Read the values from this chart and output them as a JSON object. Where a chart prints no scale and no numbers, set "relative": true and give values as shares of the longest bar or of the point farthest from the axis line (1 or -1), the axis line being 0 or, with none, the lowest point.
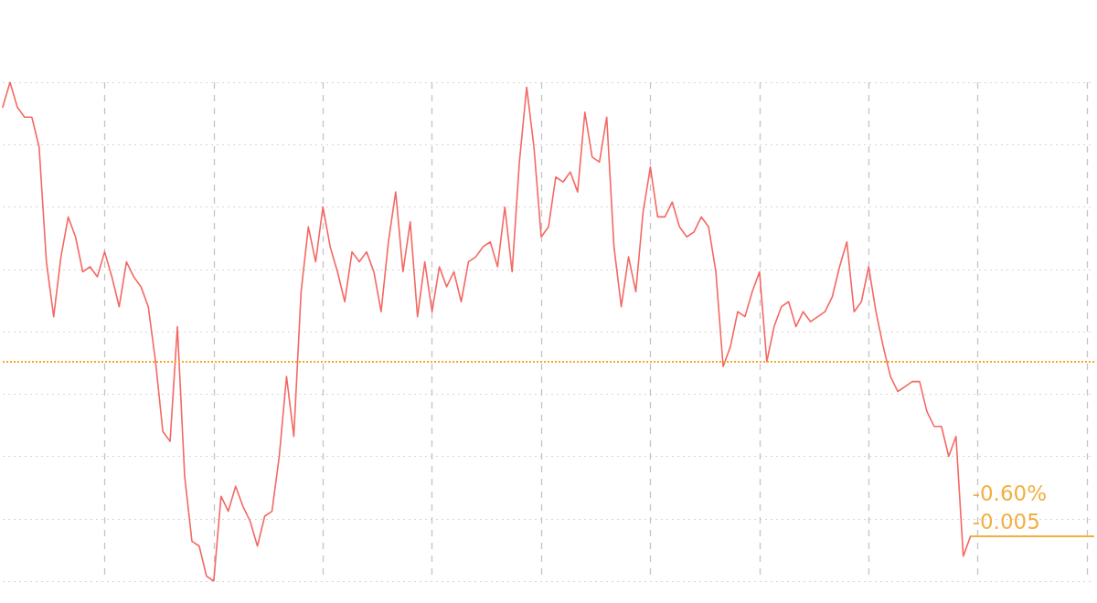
{
  "chart_data": {
    "type": "line",
    "relative": true,
    "grid": true,
    "categories": [
      null,
      null,
      null,
      null,
      null,
      null,
      null,
      null,
      null,
      null,
      null,
      null,
      null,
      null,
      null,
      null,
      null,
      null,
      null,
      null,
      null,
      null,
      null,
      null,
      null,
      null,
      null,
      null,
      null,
      null,
      null,
      null,
      null,
      null,
      null,
      null,
      null,
      null,
      null,
      null,
      null,
      null,
      null,
      null,
      null,
      null,
      null,
      null,
      null,
      null,
      null,
      null,
      null,
      null,
      null,
      null,
      null,
      null,
      null,
      null,
      null,
      null,
      null,
      null,
      null,
      null,
      null,
      null,
      null,
      null,
      null,
      null,
      null,
      null,
      null,
      null,
      null,
      null,
      null,
      null,
      null,
      null,
      null,
      null,
      null,
      null,
      null,
      null,
      null,
      null,
      null,
      null,
      null,
      null,
      null,
      null,
      null,
      null,
      null,
      null,
      null,
      null,
      null,
      null,
      null,
      null,
      null,
      null,
      null,
      null,
      null,
      null,
      null,
      null,
      null,
      null,
      null,
      null,
      null,
      null,
      null,
      null,
      null,
      null,
      null,
      null,
      null,
      null,
      null,
      null,
      null,
      null,
      null,
      null,
      null,
      null,
      null,
      null,
      null,
      null,
      null,
      null,
      null,
      null,
      null,
      null,
      null,
      null,
      null,
      null,
      null
    ],
    "series": [
      {
        "color": "#f46864",
        "values": [
          0.95,
          1.0,
          0.95,
          0.93,
          0.93,
          0.87,
          0.64,
          0.53,
          0.65,
          0.73,
          0.69,
          0.62,
          0.63,
          0.61,
          0.66,
          0.61,
          0.55,
          0.64,
          0.61,
          0.59,
          0.55,
          0.44,
          0.3,
          0.28,
          0.51,
          0.21,
          0.08,
          0.07,
          0.01,
          0.0,
          0.17,
          0.14,
          0.19,
          0.15,
          0.12,
          0.07,
          0.13,
          0.14,
          0.25,
          0.41,
          0.29,
          0.58,
          0.71,
          0.64,
          0.75,
          0.67,
          0.62,
          0.56,
          0.66,
          0.64,
          0.66,
          0.62,
          0.54,
          0.68,
          0.78,
          0.62,
          0.72,
          0.53,
          0.64,
          0.54,
          0.63,
          0.59,
          0.62,
          0.56,
          0.64,
          0.65,
          0.67,
          0.68,
          0.63,
          0.75,
          0.62,
          0.84,
          0.99,
          0.87,
          0.69,
          0.71,
          0.81,
          0.8,
          0.82,
          0.78,
          0.94,
          0.85,
          0.84,
          0.93,
          0.67,
          0.55,
          0.65,
          0.58,
          0.74,
          0.83,
          0.73,
          0.73,
          0.76,
          0.71,
          0.69,
          0.7,
          0.73,
          0.71,
          0.62,
          0.43,
          0.47,
          0.54,
          0.53,
          0.58,
          0.62,
          0.44,
          0.51,
          0.55,
          0.56,
          0.51,
          0.54,
          0.52,
          0.53,
          0.54,
          0.57,
          0.63,
          0.68,
          0.54,
          0.56,
          0.63,
          0.54,
          0.47,
          0.41,
          0.38,
          0.39,
          0.4,
          0.4,
          0.34,
          0.31,
          0.31,
          0.25,
          0.29,
          0.05,
          0.09,
          null,
          null,
          null,
          null,
          null,
          null,
          null,
          null,
          null,
          null,
          null,
          null,
          null,
          null,
          null,
          null,
          null
        ]
      }
    ],
    "ref_lines": [
      {
        "axis": "y",
        "value": 0.44,
        "color": "#f3a82c",
        "line_style": "dotted"
      },
      {
        "axis": "y",
        "value": 0.09,
        "color": "#f2b040",
        "line_style": "solid"
      }
    ],
    "annotations": [
      {
        "text": "-0.60%",
        "y": 0.09
      },
      {
        "text": "-0.005",
        "y": 0.09
      }
    ]
  }
}
